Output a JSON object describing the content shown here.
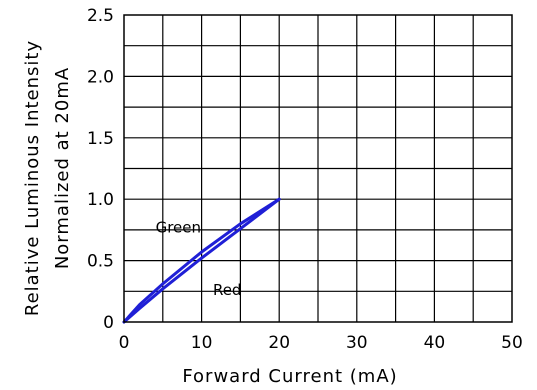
{
  "chart_data": {
    "type": "line",
    "title": "",
    "xlabel": "Forward Current (mA)",
    "ylabel_lines": [
      "Relative Luminous Intensity",
      "Normalized at 20mA"
    ],
    "xlim": [
      0,
      50
    ],
    "ylim": [
      0,
      2.5
    ],
    "x_ticks": [
      0,
      10,
      20,
      30,
      40,
      50
    ],
    "x_tick_labels": [
      "0",
      "10",
      "20",
      "30",
      "40",
      "50"
    ],
    "y_ticks": [
      0,
      0.5,
      1.0,
      1.5,
      2.0,
      2.5
    ],
    "y_tick_labels": [
      "0",
      "0.5",
      "1.0",
      "1.5",
      "2.0",
      "2.5"
    ],
    "grid": true,
    "grid_x_step": 5,
    "grid_y_step": 0.25,
    "line_color": "#1f1fd6",
    "series": [
      {
        "name": "Green",
        "x": [
          0,
          2,
          5,
          10,
          15,
          20
        ],
        "y": [
          0,
          0.14,
          0.31,
          0.57,
          0.8,
          1.0
        ]
      },
      {
        "name": "Red",
        "x": [
          0,
          2,
          5,
          10,
          15,
          20
        ],
        "y": [
          0,
          0.11,
          0.27,
          0.52,
          0.76,
          1.0
        ]
      }
    ]
  }
}
